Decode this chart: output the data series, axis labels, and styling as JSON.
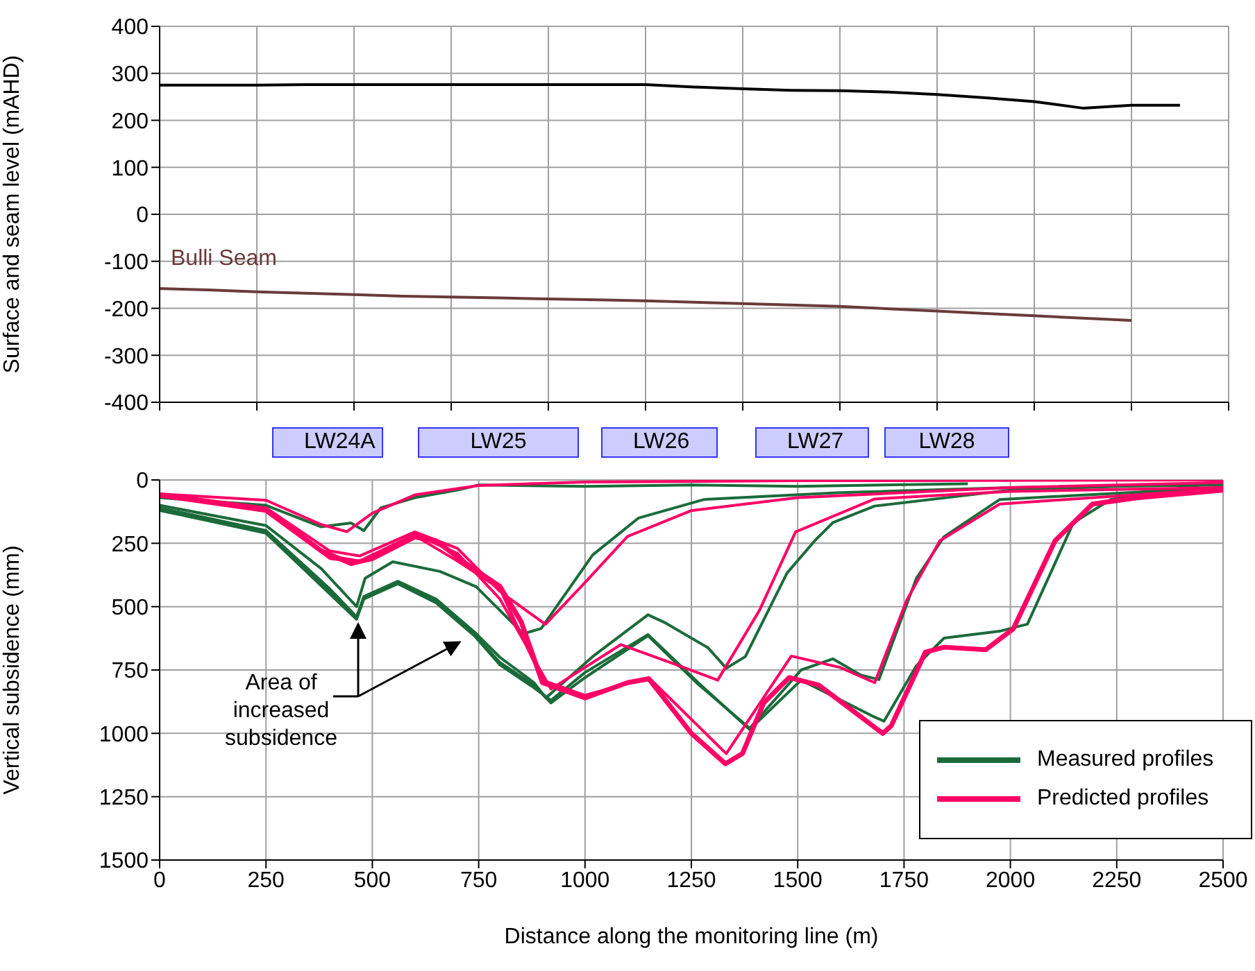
{
  "chart_data": [
    {
      "type": "line",
      "ylabel": "Surface and seam level (mAHD)",
      "categories": [
        null,
        null,
        null,
        null,
        null,
        null,
        null,
        null,
        null,
        null,
        null,
        null,
        null,
        null,
        null,
        null,
        null,
        null,
        null,
        null,
        null,
        null,
        null
      ],
      "ylim": [
        -400,
        400
      ],
      "yticks": [
        -400,
        -300,
        -200,
        -100,
        0,
        100,
        200,
        300,
        400
      ],
      "grid": true,
      "series": [
        {
          "color": "#000000",
          "values": [
            275,
            275,
            275,
            276,
            276,
            276,
            276,
            276,
            276,
            276,
            276,
            271,
            267,
            264,
            263,
            260,
            255,
            248,
            240,
            226,
            232,
            232,
            null
          ]
        },
        {
          "name": "Bulli Seam",
          "color": "#6b3a3a",
          "values": [
            -158,
            -161,
            -165,
            -168,
            -171,
            -174,
            -176,
            -178,
            -180,
            -182,
            -184,
            -187,
            -190,
            -193,
            -196,
            -201,
            -206,
            -211,
            -216,
            -221,
            -226,
            null,
            null
          ]
        }
      ]
    },
    {
      "type": "line",
      "xlabel": "Distance along the monitoring line (m)",
      "ylabel": "Vertical subsidence (mm)",
      "xlim": [
        0,
        2500
      ],
      "xticks": [
        0,
        250,
        500,
        750,
        1000,
        1250,
        1500,
        1750,
        2000,
        2250,
        2500
      ],
      "ylim": [
        1500,
        0
      ],
      "yticks": [
        0,
        250,
        500,
        750,
        1000,
        1250,
        1500
      ],
      "grid": true,
      "legend": "bottom right",
      "annotations": [
        "Area of increased subsidence",
        "LW24A",
        "LW25",
        "LW26",
        "LW27",
        "LW28"
      ],
      "series": [
        {
          "name": "Measured profiles",
          "color": "#1b6b3a",
          "x": [
            0,
            250,
            380,
            450,
            480,
            520,
            600,
            700,
            750,
            1000,
            1250,
            1500,
            1900
          ],
          "values": [
            70,
            100,
            185,
            170,
            200,
            110,
            70,
            40,
            20,
            25,
            20,
            25,
            15
          ]
        },
        {
          "color": "#1b6b3a",
          "x": [
            0,
            250,
            380,
            463,
            483,
            548,
            659,
            744,
            855,
            897,
            1018,
            1126,
            1280,
            1600,
            2000,
            2500
          ],
          "values": [
            100,
            180,
            350,
            500,
            388,
            323,
            361,
            421,
            607,
            586,
            296,
            150,
            77,
            50,
            30,
            20
          ]
        },
        {
          "color": "#1b6b3a",
          "x": [
            0,
            250,
            400,
            463,
            480,
            560,
            650,
            740,
            800,
            880,
            908,
            1018,
            1148,
            1190,
            1289,
            1332,
            1377,
            1475,
            1540,
            1583,
            1681,
            2000,
            2500
          ],
          "values": [
            110,
            200,
            430,
            540,
            460,
            400,
            470,
            600,
            700,
            800,
            860,
            697,
            532,
            565,
            662,
            743,
            697,
            367,
            240,
            168,
            103,
            40,
            10
          ]
        },
        {
          "color": "#1b6b3a",
          "x": [
            0,
            250,
            400,
            463,
            480,
            560,
            650,
            740,
            800,
            880,
            920,
            1000,
            1148,
            1266,
            1387,
            1508,
            1583,
            1648,
            1691,
            1779,
            1844,
            1975,
            2500
          ],
          "values": [
            115,
            205,
            440,
            545,
            465,
            405,
            480,
            610,
            720,
            810,
            880,
            780,
            615,
            806,
            980,
            750,
            706,
            770,
            788,
            388,
            224,
            77,
            30
          ]
        },
        {
          "color": "#1b6b3a",
          "x": [
            0,
            250,
            400,
            463,
            480,
            560,
            650,
            740,
            800,
            880,
            920,
            1000,
            1148,
            1266,
            1387,
            1508,
            1681,
            1703,
            1779,
            1844,
            1975,
            2040,
            2148,
            2236,
            2500
          ],
          "values": [
            120,
            210,
            450,
            550,
            470,
            410,
            485,
            615,
            730,
            820,
            870,
            760,
            610,
            800,
            985,
            790,
            936,
            952,
            733,
            624,
            597,
            569,
            169,
            77,
            5
          ]
        },
        {
          "name": "Predicted profiles",
          "color": "#ff0066",
          "x": [
            0,
            250,
            380,
            440,
            500,
            600,
            750,
            1000,
            1500,
            2500
          ],
          "values": [
            55,
            80,
            176,
            204,
            131,
            59,
            22,
            8,
            3,
            0
          ]
        },
        {
          "color": "#ff0066",
          "x": [
            0,
            250,
            400,
            470,
            600,
            700,
            800,
            907,
            1000,
            1100,
            1250,
            1500,
            2000,
            2500
          ],
          "values": [
            55,
            110,
            280,
            300,
            205,
            270,
            440,
            570,
            405,
            223,
            121,
            70,
            30,
            10
          ]
        },
        {
          "color": "#ff0066",
          "x": [
            0,
            250,
            400,
            470,
            600,
            700,
            800,
            920,
            1084,
            1200,
            1312,
            1410,
            1495,
            1681,
            2000,
            2500
          ],
          "values": [
            58,
            115,
            300,
            320,
            215,
            290,
            470,
            825,
            650,
            720,
            790,
            515,
            205,
            75,
            45,
            30
          ]
        },
        {
          "color": "#ff0066",
          "x": [
            0,
            250,
            400,
            470,
            600,
            700,
            800,
            900,
            1000,
            1150,
            1332,
            1485,
            1600,
            1681,
            1756,
            1834,
            1975,
            2500
          ],
          "values": [
            58,
            118,
            310,
            325,
            220,
            320,
            430,
            790,
            850,
            780,
            1080,
            695,
            740,
            800,
            476,
            240,
            95,
            35
          ]
        },
        {
          "color": "#ff0066",
          "x": [
            0,
            250,
            380,
            450,
            500,
            600,
            650,
            720,
            800,
            850,
            900,
            1000,
            1100,
            1150,
            1250,
            1330,
            1370,
            1420,
            1480,
            1550,
            1700,
            1720,
            1800,
            1844,
            1942,
            2007,
            2105,
            2193,
            2300,
            2500
          ],
          "values": [
            60,
            120,
            280,
            330,
            310,
            225,
            240,
            330,
            420,
            560,
            800,
            860,
            800,
            785,
            1000,
            1120,
            1080,
            880,
            780,
            810,
            1000,
            970,
            680,
            660,
            670,
            587,
            240,
            95,
            70,
            40
          ]
        }
      ]
    }
  ]
}
